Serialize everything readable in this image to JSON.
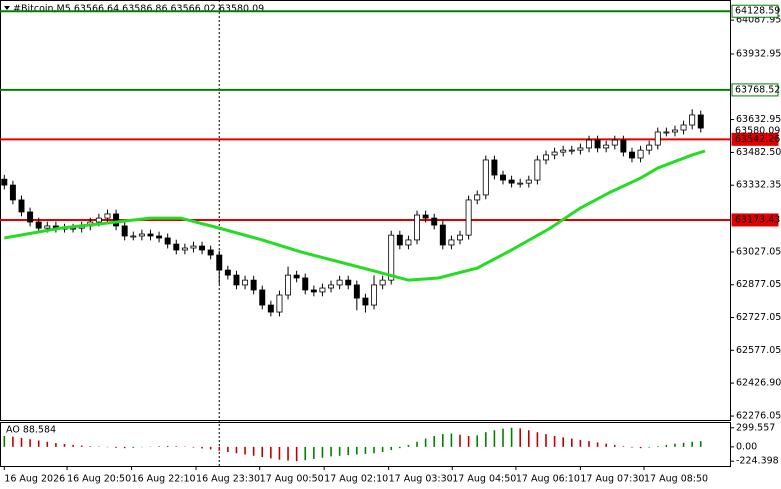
{
  "chart_data": {
    "type": "candlestick",
    "header": "#Bitcoin,M5  63566.64 63586.86 63566.02 63580.09",
    "open": [
      63360,
      63333,
      63265,
      63210,
      63164,
      63136,
      63146,
      63136,
      63136,
      63136,
      63146,
      63164,
      63182,
      63201,
      63146,
      63100,
      63100,
      63109,
      63100,
      63091,
      63063,
      63036,
      63045,
      63054,
      63036,
      63013,
      62944,
      62921,
      62876,
      62898,
      62853,
      62784,
      62752,
      62830,
      62921,
      62908,
      62853,
      62844,
      62862,
      62876,
      62898,
      62876,
      62816,
      62784,
      62876,
      62898,
      63104,
      63059,
      63082,
      63196,
      63182,
      63150,
      63059,
      63082,
      63104,
      63265,
      63288,
      63448,
      63379,
      63356,
      63342,
      63342,
      63356,
      63448,
      63471,
      63484,
      63493,
      63493,
      63503,
      63539,
      63503,
      63516,
      63539,
      63484,
      63457,
      63493,
      63516,
      63576,
      63576,
      63585,
      63608,
      63654
    ],
    "high": [
      63380,
      63353,
      63285,
      63230,
      63184,
      63166,
      63166,
      63156,
      63156,
      63166,
      63184,
      63202,
      63221,
      63221,
      63166,
      63120,
      63129,
      63129,
      63120,
      63111,
      63083,
      63065,
      63074,
      63074,
      63056,
      63033,
      62964,
      62941,
      62918,
      62918,
      62873,
      62804,
      62850,
      62960,
      62941,
      62928,
      62873,
      62882,
      62896,
      62918,
      62918,
      62896,
      62836,
      62920,
      62918,
      63124,
      63124,
      63102,
      63216,
      63216,
      63202,
      63170,
      63102,
      63124,
      63285,
      63308,
      63468,
      63468,
      63399,
      63376,
      63362,
      63376,
      63468,
      63491,
      63504,
      63513,
      63513,
      63523,
      63559,
      63559,
      63536,
      63559,
      63559,
      63504,
      63513,
      63536,
      63596,
      63596,
      63605,
      63628,
      63680,
      63674
    ],
    "low": [
      63313,
      63245,
      63190,
      63144,
      63116,
      63116,
      63116,
      63116,
      63116,
      63116,
      63126,
      63144,
      63162,
      63126,
      63080,
      63080,
      63080,
      63080,
      63071,
      63043,
      63016,
      63016,
      63025,
      63016,
      62993,
      62880,
      62901,
      62856,
      62856,
      62833,
      62764,
      62732,
      62732,
      62810,
      62888,
      62833,
      62824,
      62824,
      62842,
      62856,
      62856,
      62760,
      62750,
      62764,
      62856,
      62878,
      63039,
      63039,
      63062,
      63162,
      63130,
      63039,
      63039,
      63062,
      63084,
      63245,
      63268,
      63359,
      63336,
      63322,
      63322,
      63322,
      63336,
      63428,
      63451,
      63464,
      63473,
      63473,
      63483,
      63483,
      63483,
      63496,
      63464,
      63437,
      63437,
      63473,
      63496,
      63556,
      63556,
      63565,
      63588,
      63574
    ],
    "close": [
      63333,
      63265,
      63210,
      63164,
      63136,
      63146,
      63136,
      63136,
      63136,
      63146,
      63164,
      63182,
      63201,
      63146,
      63100,
      63100,
      63109,
      63100,
      63091,
      63063,
      63036,
      63045,
      63054,
      63036,
      63013,
      62944,
      62921,
      62876,
      62898,
      62853,
      62784,
      62752,
      62830,
      62921,
      62908,
      62853,
      62844,
      62862,
      62876,
      62898,
      62876,
      62816,
      62784,
      62876,
      62898,
      63104,
      63059,
      63082,
      63196,
      63182,
      63150,
      63059,
      63082,
      63104,
      63265,
      63288,
      63448,
      63379,
      63356,
      63342,
      63342,
      63356,
      63448,
      63471,
      63484,
      63493,
      63493,
      63503,
      63539,
      63503,
      63516,
      63539,
      63484,
      63457,
      63493,
      63516,
      63576,
      63576,
      63585,
      63608,
      63654,
      63594
    ],
    "up_color": "#ffffff",
    "down_color": "#000000",
    "xlim": [
      -0.5,
      84.4
    ],
    "ylim": [
      62258,
      64180
    ],
    "yticks": [
      64087.95,
      63932.95,
      63632.95,
      {
        "value": 63482.5,
        "label": "63482.50"
      },
      63332.35,
      63027.05,
      62877.05,
      62727.05,
      62577.05,
      {
        "value": 62426.9,
        "label": "62426.90"
      },
      62276.05
    ],
    "xticks": [
      {
        "value": 0,
        "label": "16 Aug 2026"
      },
      {
        "value": 7.3,
        "label": "16 Aug 20:50"
      },
      {
        "value": 14.8,
        "label": "16 Aug 22:10"
      },
      {
        "value": 22.3,
        "label": "16 Aug 23:30"
      },
      {
        "value": 29.7,
        "label": "17 Aug 00:50"
      },
      {
        "value": 37.2,
        "label": "17 Aug 02:10"
      },
      {
        "value": 44.7,
        "label": "17 Aug 03:30"
      },
      {
        "value": 52.1,
        "label": "17 Aug 04:50"
      },
      {
        "value": 59.5,
        "label": "17 Aug 06:10"
      },
      {
        "value": 67,
        "label": "17 Aug 07:30"
      },
      {
        "value": 74.4,
        "label": "17 Aug 08:50"
      }
    ],
    "separator_x": 25,
    "moving_average": {
      "color": "#22dd22",
      "x": [
        0,
        6.5,
        11,
        17,
        20.5,
        25,
        30,
        34.5,
        39,
        43.5,
        47,
        50.5,
        55,
        59,
        63.5,
        67,
        70.5,
        74,
        76,
        80,
        81.5
      ],
      "values": [
        63091,
        63136,
        63155,
        63182,
        63182,
        63136,
        63082,
        63027,
        62981,
        62935,
        62898,
        62908,
        62953,
        63036,
        63136,
        63228,
        63301,
        63365,
        63411,
        63471,
        63489
      ]
    },
    "levels": [
      {
        "value": 64128.59,
        "color": "#008000"
      },
      {
        "value": 63768.52,
        "color": "#008000"
      },
      {
        "value": 63542.26,
        "color": "#e00000"
      },
      {
        "value": 63173.43,
        "color": "#e00000"
      }
    ],
    "bid": 63580.09,
    "ao": {
      "title": "AO 88.584",
      "ylim": [
        -300,
        390
      ],
      "yticks": [
        299.557,
        {
          "value": 0,
          "label": "0.00"
        },
        -224.398
      ],
      "up_color": "#008000",
      "down_color": "#c00000",
      "values": [
        170,
        160,
        140,
        120,
        100,
        80,
        60,
        45,
        30,
        20,
        10,
        5,
        -5,
        -15,
        -20,
        -15,
        -5,
        5,
        10,
        15,
        10,
        5,
        -10,
        -25,
        -40,
        -60,
        -80,
        -100,
        -120,
        -140,
        -160,
        -180,
        -200,
        -215,
        -224,
        -210,
        -190,
        -170,
        -150,
        -140,
        -130,
        -120,
        -110,
        -100,
        -80,
        -50,
        -20,
        30,
        80,
        130,
        170,
        200,
        210,
        190,
        170,
        180,
        230,
        260,
        285,
        299,
        290,
        260,
        230,
        200,
        170,
        150,
        130,
        110,
        90,
        70,
        50,
        30,
        10,
        -10,
        -20,
        -10,
        10,
        30,
        50,
        65,
        80,
        88.584
      ]
    }
  }
}
